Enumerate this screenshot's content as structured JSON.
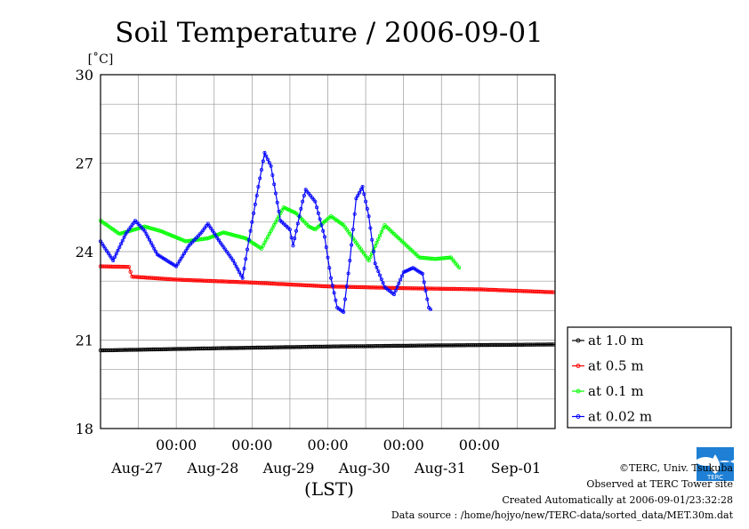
{
  "chart_data": {
    "type": "line",
    "title": "Soil Temperature / 2006-09-01",
    "ylabel": "[˚C]",
    "xlabel": "(LST)",
    "ylim": [
      18,
      30
    ],
    "yticks": [
      18,
      21,
      24,
      27,
      30
    ],
    "x_unit": "hours from 2006-08-26 00:00 LST",
    "xlim": [
      24,
      168
    ],
    "x_tick_labels": [
      {
        "x": 48,
        "time": "00:00",
        "date": "Aug-27"
      },
      {
        "x": 72,
        "time": "00:00",
        "date": "Aug-28"
      },
      {
        "x": 96,
        "time": "00:00",
        "date": "Aug-29"
      },
      {
        "x": 120,
        "time": "00:00",
        "date": "Aug-30"
      },
      {
        "x": 144,
        "time": "00:00",
        "date": "Aug-31"
      },
      {
        "x": 168,
        "time": "",
        "date": "Sep-01"
      }
    ],
    "grid": true,
    "legend_position": "right",
    "series": [
      {
        "name": "at 1.0 m",
        "color": "#000000",
        "points": [
          [
            24,
            20.65
          ],
          [
            60,
            20.72
          ],
          [
            96,
            20.78
          ],
          [
            132,
            20.82
          ],
          [
            168,
            20.85
          ]
        ]
      },
      {
        "name": "at 0.5 m",
        "color": "#ff0000",
        "points": [
          [
            24,
            23.5
          ],
          [
            33,
            23.48
          ],
          [
            34,
            23.15
          ],
          [
            48,
            23.05
          ],
          [
            72,
            22.95
          ],
          [
            96,
            22.82
          ],
          [
            120,
            22.76
          ],
          [
            144,
            22.72
          ],
          [
            168,
            22.62
          ]
        ]
      },
      {
        "name": "at 0.1 m",
        "color": "#00ff00",
        "points": [
          [
            24,
            25.05
          ],
          [
            30,
            24.6
          ],
          [
            38,
            24.85
          ],
          [
            43,
            24.7
          ],
          [
            51,
            24.35
          ],
          [
            58,
            24.45
          ],
          [
            63,
            24.65
          ],
          [
            70,
            24.45
          ],
          [
            75,
            24.1
          ],
          [
            82,
            25.5
          ],
          [
            86,
            25.3
          ],
          [
            90,
            24.85
          ],
          [
            92,
            24.75
          ],
          [
            97,
            25.2
          ],
          [
            101,
            24.9
          ],
          [
            109,
            23.7
          ],
          [
            114,
            24.9
          ],
          [
            117,
            24.6
          ],
          [
            125,
            23.8
          ],
          [
            130,
            23.75
          ],
          [
            135,
            23.8
          ],
          [
            138,
            23.4
          ]
        ]
      },
      {
        "name": "at 0.02 m",
        "color": "#0000ff",
        "points": [
          [
            24,
            24.35
          ],
          [
            28,
            23.7
          ],
          [
            32,
            24.6
          ],
          [
            35,
            25.05
          ],
          [
            38,
            24.7
          ],
          [
            42,
            23.9
          ],
          [
            48,
            23.5
          ],
          [
            52,
            24.2
          ],
          [
            56,
            24.65
          ],
          [
            58,
            24.95
          ],
          [
            62,
            24.3
          ],
          [
            66,
            23.7
          ],
          [
            69,
            23.1
          ],
          [
            71,
            24.4
          ],
          [
            74,
            26.2
          ],
          [
            76,
            27.35
          ],
          [
            78,
            26.9
          ],
          [
            81,
            25.05
          ],
          [
            84,
            24.75
          ],
          [
            85,
            24.2
          ],
          [
            88,
            25.7
          ],
          [
            89,
            26.1
          ],
          [
            92,
            25.7
          ],
          [
            95,
            24.5
          ],
          [
            97,
            23.1
          ],
          [
            99,
            22.1
          ],
          [
            101,
            21.95
          ],
          [
            103,
            23.7
          ],
          [
            105,
            25.8
          ],
          [
            107,
            26.2
          ],
          [
            109,
            25.2
          ],
          [
            111,
            23.6
          ],
          [
            114,
            22.8
          ],
          [
            117,
            22.55
          ],
          [
            120,
            23.3
          ],
          [
            123,
            23.45
          ],
          [
            126,
            23.25
          ],
          [
            128,
            22.1
          ],
          [
            129,
            22.0
          ]
        ]
      }
    ]
  },
  "credits": {
    "copyright": "©TERC, Univ. Tsukuba",
    "observed": "Observed at TERC Tower site",
    "created": "Created Automatically at 2006-09-01/23:32:28",
    "source": "Data source : /home/hojyo/new/TERC-data/sorted_data/MET.30m.dat"
  },
  "logo": {
    "text": "TERC",
    "color": "#1e7fd4"
  }
}
